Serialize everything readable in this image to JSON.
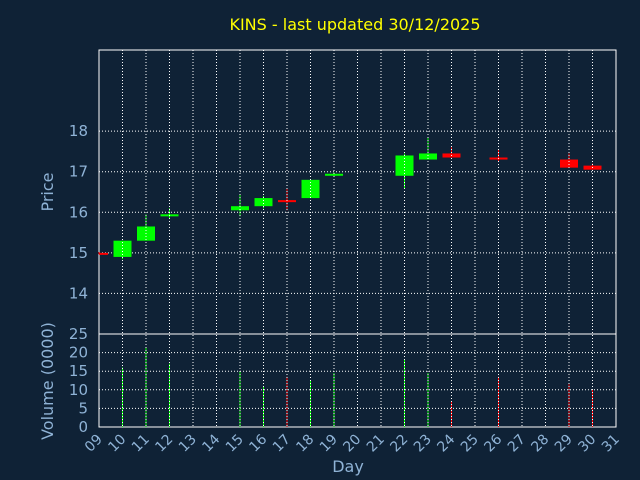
{
  "title": "KINS - last updated 30/12/2025",
  "colors": {
    "background": "#0f2236",
    "text": "#8fb3d6",
    "title": "#ffff00",
    "grid": "#ffffff",
    "axis": "#ffffff",
    "up": "#00ff00",
    "down": "#ff0000"
  },
  "chart_data": [
    {
      "type": "candlestick",
      "ylabel": "Price",
      "ylim": [
        13,
        20
      ],
      "yticks": [
        14,
        15,
        16,
        17,
        18
      ],
      "grid": true,
      "candles": [
        {
          "day": "09",
          "open": 15.0,
          "high": 15.02,
          "low": 14.97,
          "close": 14.98
        },
        {
          "day": "10",
          "open": 14.9,
          "high": 15.3,
          "low": 14.85,
          "close": 15.3
        },
        {
          "day": "11",
          "open": 15.3,
          "high": 15.95,
          "low": 15.3,
          "close": 15.65
        },
        {
          "day": "12",
          "open": 15.9,
          "high": 16.1,
          "low": 15.85,
          "close": 15.95
        },
        {
          "day": "15",
          "open": 16.05,
          "high": 16.45,
          "low": 15.9,
          "close": 16.15
        },
        {
          "day": "16",
          "open": 16.15,
          "high": 16.4,
          "low": 16.1,
          "close": 16.35
        },
        {
          "day": "17",
          "open": 16.3,
          "high": 16.6,
          "low": 16.05,
          "close": 16.25
        },
        {
          "day": "18",
          "open": 16.35,
          "high": 16.8,
          "low": 16.35,
          "close": 16.8
        },
        {
          "day": "19",
          "open": 16.9,
          "high": 16.98,
          "low": 16.88,
          "close": 16.95
        },
        {
          "day": "22",
          "open": 16.9,
          "high": 17.45,
          "low": 16.6,
          "close": 17.4
        },
        {
          "day": "23",
          "open": 17.3,
          "high": 17.85,
          "low": 17.3,
          "close": 17.45
        },
        {
          "day": "24",
          "open": 17.45,
          "high": 17.6,
          "low": 17.35,
          "close": 17.35
        },
        {
          "day": "26",
          "open": 17.35,
          "high": 17.55,
          "low": 17.25,
          "close": 17.3
        },
        {
          "day": "29",
          "open": 17.3,
          "high": 17.45,
          "low": 17.1,
          "close": 17.1
        },
        {
          "day": "30",
          "open": 17.15,
          "high": 17.2,
          "low": 17.05,
          "close": 17.05
        }
      ]
    },
    {
      "type": "bar",
      "ylabel": "Volume (0000)",
      "xlabel": "Day",
      "ylim": [
        0,
        25
      ],
      "yticks": [
        0,
        5,
        10,
        15,
        20,
        25
      ],
      "grid": true,
      "categories": [
        "09",
        "10",
        "11",
        "12",
        "13",
        "14",
        "15",
        "16",
        "17",
        "18",
        "19",
        "20",
        "21",
        "22",
        "23",
        "24",
        "25",
        "26",
        "27",
        "28",
        "29",
        "30",
        "31"
      ],
      "volume": [
        {
          "day": "10",
          "value": 16,
          "dir": "up"
        },
        {
          "day": "11",
          "value": 21.5,
          "dir": "up"
        },
        {
          "day": "12",
          "value": 17,
          "dir": "up"
        },
        {
          "day": "15",
          "value": 15,
          "dir": "up"
        },
        {
          "day": "16",
          "value": 11,
          "dir": "up"
        },
        {
          "day": "17",
          "value": 13.5,
          "dir": "down"
        },
        {
          "day": "18",
          "value": 12.5,
          "dir": "up"
        },
        {
          "day": "19",
          "value": 14.5,
          "dir": "up"
        },
        {
          "day": "22",
          "value": 18,
          "dir": "up"
        },
        {
          "day": "23",
          "value": 14.5,
          "dir": "up"
        },
        {
          "day": "24",
          "value": 7,
          "dir": "down"
        },
        {
          "day": "26",
          "value": 13.5,
          "dir": "down"
        },
        {
          "day": "29",
          "value": 11.5,
          "dir": "down"
        },
        {
          "day": "30",
          "value": 10,
          "dir": "down"
        }
      ]
    }
  ]
}
